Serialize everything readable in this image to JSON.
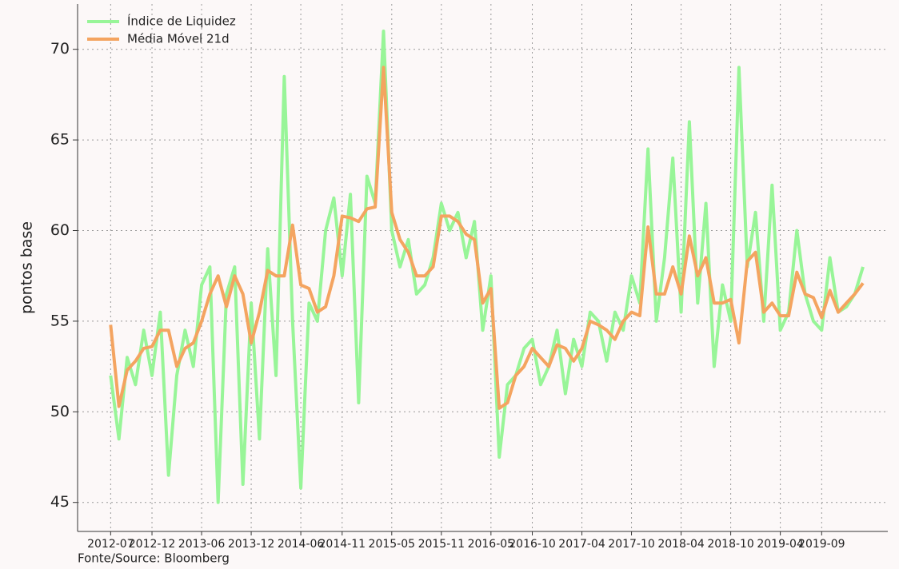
{
  "chart_data": {
    "type": "line",
    "y_label": "pontos base",
    "source": "Fonte/Source: Bloomberg",
    "x": [
      "2012-07",
      "2012-08",
      "2012-09",
      "2012-10",
      "2012-11",
      "2012-12",
      "2013-01",
      "2013-02",
      "2013-03",
      "2013-04",
      "2013-05",
      "2013-06",
      "2013-07",
      "2013-08",
      "2013-09",
      "2013-10",
      "2013-11",
      "2013-12",
      "2014-01",
      "2014-02",
      "2014-03",
      "2014-04",
      "2014-05",
      "2014-06",
      "2014-07",
      "2014-08",
      "2014-09",
      "2014-10",
      "2014-11",
      "2014-12",
      "2015-01",
      "2015-02",
      "2015-03",
      "2015-04",
      "2015-05",
      "2015-06",
      "2015-07",
      "2015-08",
      "2015-09",
      "2015-10",
      "2015-11",
      "2015-12",
      "2016-01",
      "2016-02",
      "2016-03",
      "2016-04",
      "2016-05",
      "2016-06",
      "2016-07",
      "2016-08",
      "2016-09",
      "2016-10",
      "2016-11",
      "2016-12",
      "2017-01",
      "2017-02",
      "2017-03",
      "2017-04",
      "2017-05",
      "2017-06",
      "2017-07",
      "2017-08",
      "2017-09",
      "2017-10",
      "2017-11",
      "2017-12",
      "2018-01",
      "2018-02",
      "2018-03",
      "2018-04",
      "2018-05",
      "2018-06",
      "2018-07",
      "2018-08",
      "2018-09",
      "2018-10",
      "2018-11",
      "2018-12",
      "2019-01",
      "2019-02",
      "2019-03",
      "2019-04",
      "2019-05",
      "2019-06",
      "2019-07",
      "2019-08",
      "2019-09",
      "2019-10",
      "2019-11",
      "2019-12",
      "2020-01",
      "2020-02"
    ],
    "series": [
      {
        "name": "Índice de Liquidez",
        "color": "#98f598",
        "width": 4,
        "values": [
          52.0,
          48.5,
          53.0,
          51.5,
          54.5,
          52.0,
          55.5,
          46.5,
          52.0,
          54.5,
          52.5,
          57.0,
          58.0,
          45.0,
          56.5,
          58.0,
          46.0,
          56.0,
          48.5,
          59.0,
          52.0,
          68.5,
          55.0,
          45.8,
          56.0,
          55.0,
          60.0,
          61.8,
          57.5,
          62.0,
          50.5,
          63.0,
          61.5,
          71.0,
          60.0,
          58.0,
          59.5,
          56.5,
          57.0,
          58.5,
          61.5,
          60.0,
          61.0,
          58.5,
          60.5,
          54.5,
          57.5,
          47.5,
          51.5,
          52.0,
          53.5,
          54.0,
          51.5,
          52.5,
          54.5,
          51.0,
          54.0,
          52.5,
          55.5,
          55.0,
          52.8,
          55.5,
          54.5,
          57.5,
          56.0,
          64.5,
          55.0,
          58.5,
          64.0,
          55.5,
          66.0,
          56.0,
          61.5,
          52.5,
          57.0,
          55.0,
          69.0,
          58.0,
          61.0,
          55.0,
          62.5,
          54.5,
          55.5,
          60.0,
          56.5,
          55.0,
          54.5,
          58.5,
          55.5,
          55.8,
          56.5,
          58.0
        ]
      },
      {
        "name": "Média Móvel 21d",
        "color": "#f4a460",
        "width": 4,
        "values": [
          54.8,
          50.3,
          52.3,
          52.8,
          53.5,
          53.6,
          54.5,
          54.5,
          52.5,
          53.5,
          53.8,
          55.0,
          56.5,
          57.5,
          55.8,
          57.5,
          56.5,
          53.8,
          55.5,
          57.8,
          57.5,
          57.5,
          60.3,
          57.0,
          56.8,
          55.5,
          55.8,
          57.5,
          60.8,
          60.7,
          60.5,
          61.2,
          61.3,
          69.0,
          61.0,
          59.5,
          58.8,
          57.5,
          57.5,
          58.0,
          60.8,
          60.8,
          60.5,
          59.8,
          59.5,
          56.0,
          56.8,
          50.2,
          50.5,
          52.0,
          52.5,
          53.5,
          53.0,
          52.5,
          53.7,
          53.5,
          52.8,
          53.5,
          55.0,
          54.8,
          54.5,
          54.0,
          55.0,
          55.5,
          55.3,
          60.2,
          56.5,
          56.5,
          58.0,
          56.5,
          59.7,
          57.5,
          58.5,
          56.0,
          56.0,
          56.2,
          53.8,
          58.3,
          58.8,
          55.5,
          56.0,
          55.3,
          55.3,
          57.7,
          56.5,
          56.3,
          55.2,
          56.7,
          55.5,
          56.0,
          56.5,
          57.1
        ]
      }
    ],
    "xlim": [
      "2012-03",
      "2020-05"
    ],
    "xticks": [
      "2012-07",
      "2012-12",
      "2013-06",
      "2013-12",
      "2014-06",
      "2014-11",
      "2015-05",
      "2015-11",
      "2016-05",
      "2016-10",
      "2017-04",
      "2017-10",
      "2018-04",
      "2018-10",
      "2019-04",
      "2019-09"
    ],
    "ylim": [
      43.4,
      72.5
    ],
    "yticks": [
      45,
      50,
      55,
      60,
      65,
      70
    ],
    "grid": true,
    "legend": "upper left"
  }
}
